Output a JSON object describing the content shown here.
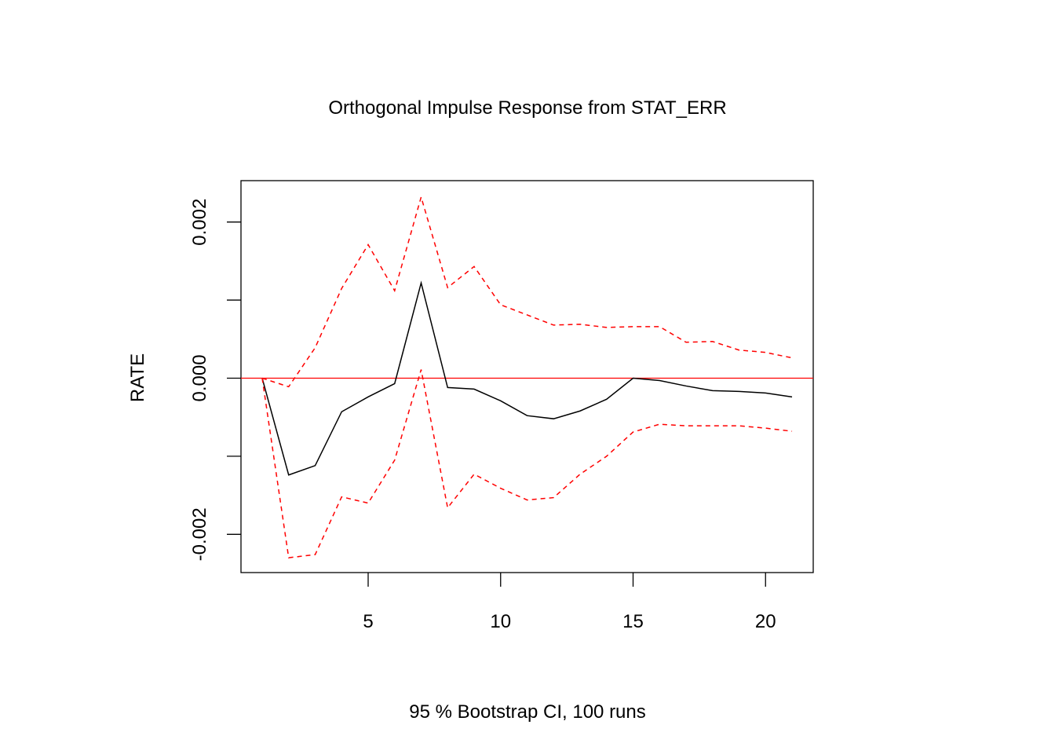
{
  "chart_data": {
    "type": "line",
    "title": "Orthogonal Impulse Response from STAT_ERR",
    "xlabel": "95 % Bootstrap CI,  100 runs",
    "ylabel": "RATE",
    "xlim": [
      0.2,
      21.8
    ],
    "ylim": [
      -0.00249,
      0.00253
    ],
    "xticks": [
      5,
      10,
      15,
      20
    ],
    "xtick_labels": [
      "5",
      "10",
      "15",
      "20"
    ],
    "yticks": [
      -0.002,
      -0.001,
      0.0,
      0.001,
      0.002
    ],
    "ytick_labels": [
      "-0.002",
      "",
      "0.000",
      "",
      "0.002"
    ],
    "grid": false,
    "x": [
      1,
      2,
      3,
      4,
      5,
      6,
      7,
      8,
      9,
      10,
      11,
      12,
      13,
      14,
      15,
      16,
      17,
      18,
      19,
      20,
      21
    ],
    "series": [
      {
        "name": "RATE",
        "color": "#000000",
        "style": "solid",
        "values": [
          0,
          -0.00124,
          -0.00112,
          -0.00043,
          -0.00024,
          -7e-05,
          0.00122,
          -0.00012,
          -0.00014,
          -0.00029,
          -0.00048,
          -0.00052,
          -0.00042,
          -0.00027,
          0.0,
          -3e-05,
          -0.0001,
          -0.00016,
          -0.00017,
          -0.00019,
          -0.00024
        ]
      },
      {
        "name": "Upper CI",
        "color": "#ff0000",
        "style": "dashed",
        "values": [
          0,
          -0.00011,
          0.00039,
          0.00115,
          0.00171,
          0.00112,
          0.00232,
          0.00116,
          0.00143,
          0.00094,
          0.00081,
          0.00068,
          0.00069,
          0.00065,
          0.00066,
          0.00066,
          0.00046,
          0.00047,
          0.00036,
          0.00033,
          0.00026
        ]
      },
      {
        "name": "Lower CI",
        "color": "#ff0000",
        "style": "dashed",
        "values": [
          0,
          -0.0023,
          -0.00226,
          -0.00152,
          -0.0016,
          -0.00105,
          0.00011,
          -0.00166,
          -0.00123,
          -0.00141,
          -0.00156,
          -0.00153,
          -0.00123,
          -0.001,
          -0.00069,
          -0.00059,
          -0.00061,
          -0.00061,
          -0.00061,
          -0.00064,
          -0.00068
        ]
      }
    ],
    "hline": {
      "y": 0,
      "color": "#ff0000"
    }
  }
}
